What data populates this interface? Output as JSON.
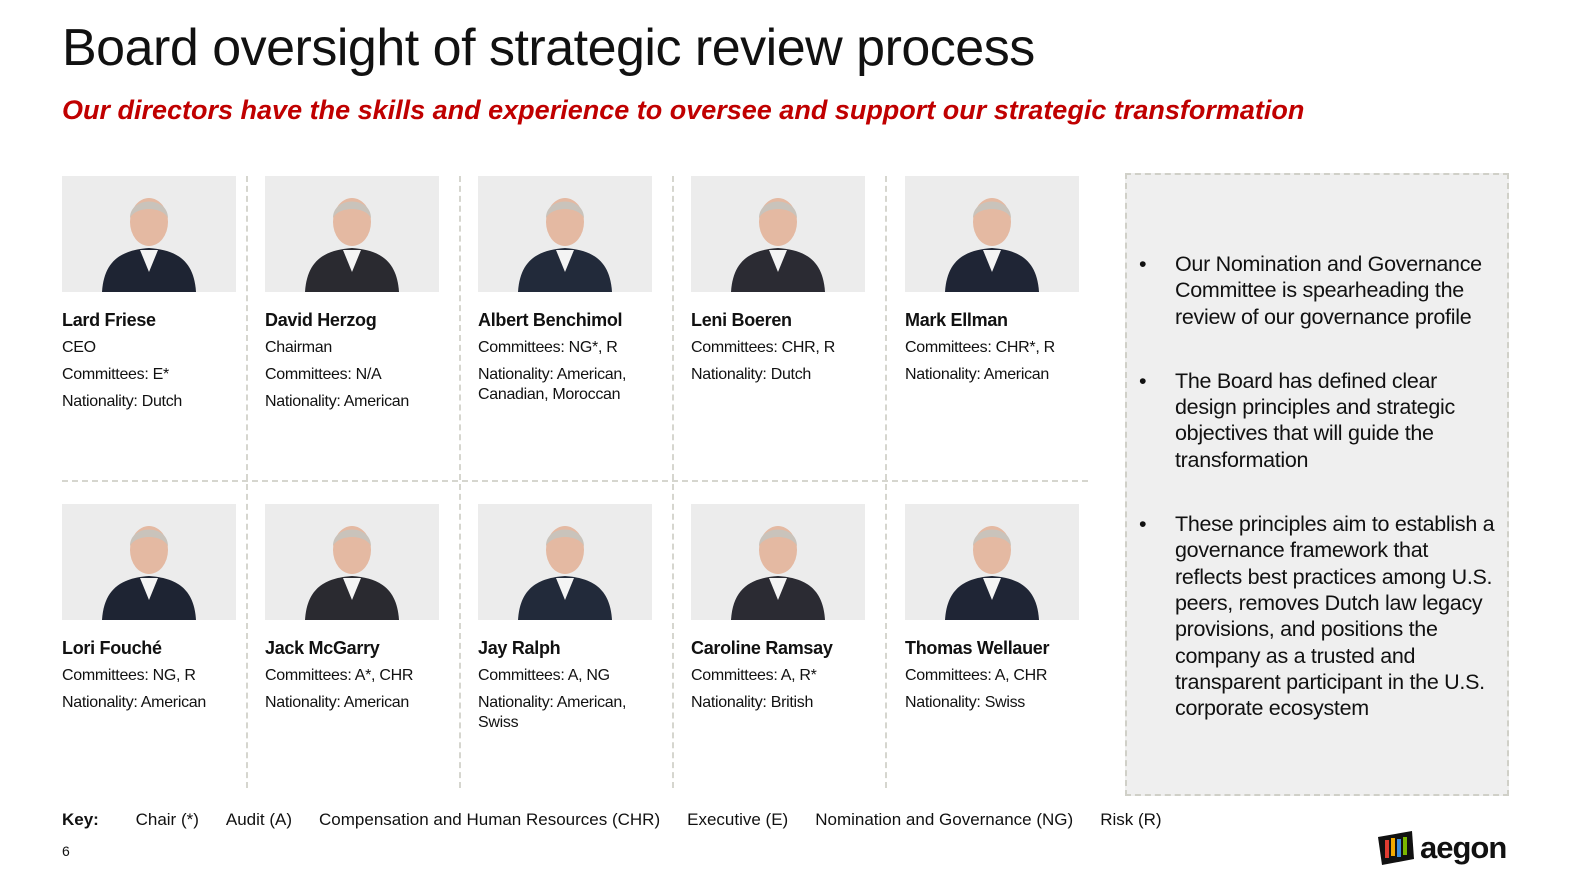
{
  "header": {
    "title": "Board oversight of strategic review process",
    "subtitle": "Our directors have the skills and experience to oversee and support our strategic transformation"
  },
  "directors": [
    {
      "name": "Lard Friese",
      "lines": [
        "CEO",
        "Committees: E*",
        "Nationality: Dutch"
      ]
    },
    {
      "name": "David Herzog",
      "lines": [
        "Chairman",
        "Committees: N/A",
        "Nationality: American"
      ]
    },
    {
      "name": "Albert Benchimol",
      "lines": [
        "Committees: NG*, R",
        "Nationality: American, Canadian, Moroccan"
      ]
    },
    {
      "name": "Leni Boeren",
      "lines": [
        "Committees: CHR, R",
        "Nationality: Dutch"
      ]
    },
    {
      "name": "Mark Ellman",
      "lines": [
        "Committees: CHR*, R",
        "Nationality: American"
      ]
    },
    {
      "name": "Lori Fouché",
      "lines": [
        "Committees: NG, R",
        "Nationality: American"
      ]
    },
    {
      "name": "Jack McGarry",
      "lines": [
        "Committees: A*, CHR",
        "Nationality: American"
      ]
    },
    {
      "name": "Jay Ralph",
      "lines": [
        "Committees: A, NG",
        "Nationality: American, Swiss"
      ]
    },
    {
      "name": "Caroline Ramsay",
      "lines": [
        "Committees: A, R*",
        "Nationality: British"
      ]
    },
    {
      "name": "Thomas Wellauer",
      "lines": [
        "Committees: A, CHR",
        "Nationality: Swiss"
      ]
    }
  ],
  "sidebar": {
    "bullets": [
      "Our Nomination and Governance Committee is spearheading the review of our governance profile",
      "The Board has defined clear design principles and strategic objectives that will guide the transformation",
      "These principles aim to establish a governance framework that reflects best practices among U.S. peers, removes Dutch law legacy provisions, and positions the company as a trusted and transparent participant in the U.S. corporate ecosystem"
    ]
  },
  "key": {
    "label": "Key:",
    "items": [
      "Chair (*)",
      "Audit (A)",
      "Compensation and Human Resources (CHR)",
      "Executive (E)",
      "Nomination and Governance (NG)",
      "Risk (R)"
    ]
  },
  "footer": {
    "page": "6",
    "logo": "aegon"
  }
}
